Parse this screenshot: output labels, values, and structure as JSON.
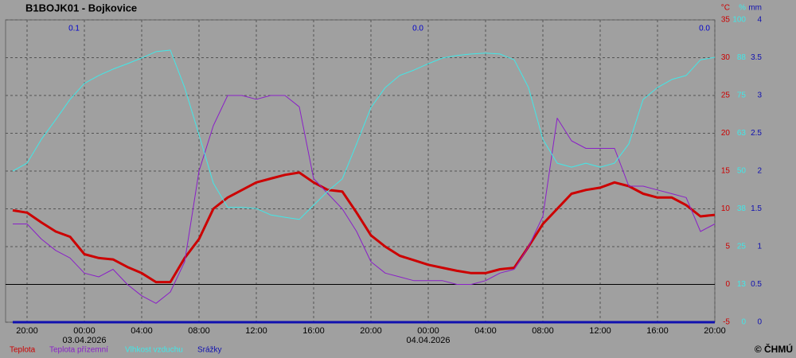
{
  "chart_data": {
    "type": "line",
    "title": "B1BOJK01 - Bojkovice",
    "copyright": "© ČHMÚ",
    "x": [
      -5,
      -4,
      -3,
      -2,
      -1,
      0,
      1,
      2,
      3,
      4,
      5,
      6,
      7,
      8,
      9,
      10,
      11,
      12,
      13,
      14,
      15,
      16,
      17,
      18,
      19,
      20,
      21,
      22,
      23,
      24,
      25,
      26,
      27,
      28,
      29,
      30,
      31,
      32,
      33,
      34,
      35,
      36,
      37,
      38,
      39,
      40,
      41,
      42,
      43,
      44
    ],
    "xlim": [
      -5.5,
      44
    ],
    "xticks": [
      {
        "value": -4,
        "label": "20:00"
      },
      {
        "value": 0,
        "label": "00:00"
      },
      {
        "value": 4,
        "label": "04:00"
      },
      {
        "value": 8,
        "label": "08:00"
      },
      {
        "value": 12,
        "label": "12:00"
      },
      {
        "value": 16,
        "label": "16:00"
      },
      {
        "value": 20,
        "label": "20:00"
      },
      {
        "value": 24,
        "label": "00:00"
      },
      {
        "value": 28,
        "label": "04:00"
      },
      {
        "value": 32,
        "label": "08:00"
      },
      {
        "value": 36,
        "label": "12:00"
      },
      {
        "value": 40,
        "label": "16:00"
      },
      {
        "value": 44,
        "label": "20:00"
      }
    ],
    "x_date_labels": [
      {
        "value": 0,
        "label": "03.04.2026"
      },
      {
        "value": 24,
        "label": "04.04.2026"
      }
    ],
    "y_unit": "°C",
    "ylim": [
      -5,
      35
    ],
    "yticks": [
      -5,
      0,
      5,
      10,
      15,
      20,
      25,
      30,
      35
    ],
    "y2_unit": "%",
    "y2lim": [
      0,
      100
    ],
    "y2ticks": [
      0,
      {
        "value": 12.5,
        "label": "13"
      },
      25,
      {
        "value": 37.5,
        "label": "38"
      },
      50,
      {
        "value": 62.5,
        "label": "63"
      },
      75,
      {
        "value": 87.5,
        "label": "88"
      },
      100
    ],
    "y3_unit": "mm",
    "y3lim": [
      0,
      4
    ],
    "y3ticks": [
      0,
      0.5,
      1,
      1.5,
      2,
      2.5,
      3,
      3.5,
      4
    ],
    "grid": true,
    "daily_totals": {
      "x": [
        0,
        24,
        44
      ],
      "values": [
        0.1,
        0,
        0
      ],
      "value_labels": [
        "0.1",
        "0.0",
        "0.0"
      ],
      "color": "#0000cc"
    },
    "series": [
      {
        "name": "Teplota",
        "color": "#cc0000",
        "axis": "y",
        "width": 3,
        "values": [
          9.8,
          9.5,
          8.2,
          7,
          6.3,
          4,
          3.5,
          3.3,
          2.3,
          1.5,
          0.3,
          0.3,
          3.5,
          6,
          10,
          11.5,
          12.5,
          13.5,
          14,
          14.5,
          14.8,
          13.5,
          12.5,
          12.3,
          9.5,
          6.5,
          5,
          3.8,
          3.2,
          2.6,
          2.2,
          1.8,
          1.5,
          1.5,
          2,
          2.2,
          5,
          8,
          10,
          12,
          12.5,
          12.8,
          13.5,
          13,
          12,
          11.5,
          11.5,
          10.5,
          9,
          9.2
        ]
      },
      {
        "name": "Teplota přízemní",
        "color": "#8a1fc8",
        "axis": "y",
        "width": 1,
        "values": [
          8,
          8,
          6,
          4.5,
          3.5,
          1.5,
          1,
          2,
          0,
          -1.5,
          -2.5,
          -1,
          3,
          15,
          21,
          25,
          25,
          24.5,
          25,
          25,
          23.5,
          14,
          12,
          10,
          7,
          3,
          1.5,
          1,
          0.5,
          0.5,
          0.5,
          0,
          0,
          0.5,
          1.5,
          2,
          5,
          9,
          22,
          19,
          18,
          18,
          18,
          13,
          13,
          12.5,
          12,
          11.5,
          7,
          8
        ]
      },
      {
        "name": "Vlhkost vzduchu",
        "color": "#40e8e8",
        "axis": "y2",
        "width": 1,
        "values": [
          50,
          52.6,
          60.5,
          67,
          73.7,
          79,
          81.6,
          83.7,
          85.5,
          87.4,
          89.5,
          90,
          77.6,
          62,
          46,
          38,
          38,
          37.6,
          35.5,
          34.7,
          34,
          38.7,
          43.4,
          47.4,
          59,
          71,
          77.6,
          81.6,
          83.4,
          85.5,
          87.4,
          88.2,
          88.7,
          89,
          88.7,
          86.8,
          77.6,
          60.5,
          52.6,
          51.3,
          52.6,
          51.3,
          52.6,
          59,
          73.7,
          77.6,
          80.3,
          81.6,
          86.8,
          87.6
        ]
      },
      {
        "name": "Srážky",
        "color": "#1010b0",
        "axis": "y3",
        "width": 3,
        "values": [
          0,
          0,
          0,
          0,
          0,
          0,
          0,
          0,
          0,
          0,
          0,
          0,
          0,
          0,
          0,
          0,
          0,
          0,
          0,
          0,
          0,
          0,
          0,
          0,
          0,
          0,
          0,
          0,
          0,
          0,
          0,
          0,
          0,
          0,
          0,
          0,
          0,
          0,
          0,
          0,
          0,
          0,
          0,
          0,
          0,
          0,
          0,
          0,
          0,
          0
        ]
      }
    ]
  }
}
